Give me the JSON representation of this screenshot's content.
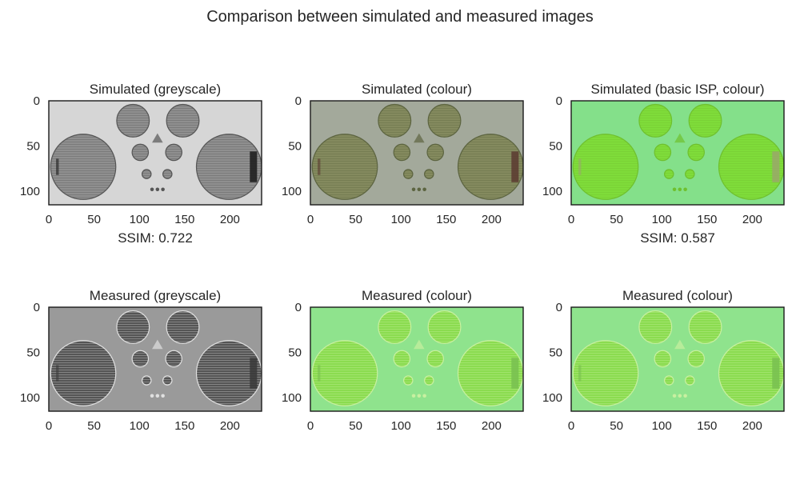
{
  "figure": {
    "title": "Comparison between simulated and measured images"
  },
  "chart_data": [
    {
      "type": "image",
      "title": "Simulated (greyscale)",
      "xlim": [
        0,
        235
      ],
      "ylim": [
        0,
        115
      ],
      "xticks": [
        0,
        50,
        100,
        150,
        200
      ],
      "yticks": [
        0,
        50,
        100
      ],
      "caption": "SSIM: 0.722",
      "palette": {
        "bg": "#d6d6d6",
        "mid": "#bdbdbd",
        "hole": "#8f8f8f",
        "edge": "#555555",
        "dark": "#1a1a1a"
      }
    },
    {
      "type": "image",
      "title": "Simulated (colour)",
      "xlim": [
        0,
        235
      ],
      "ylim": [
        0,
        115
      ],
      "xticks": [
        0,
        50,
        100,
        150,
        200
      ],
      "yticks": [
        0,
        50,
        100
      ],
      "caption": "",
      "palette": {
        "bg": "#a3a99b",
        "mid": "#9aa08f",
        "hole": "#848a5e",
        "edge": "#5c6440",
        "dark": "#5a3a30"
      }
    },
    {
      "type": "image",
      "title": "Simulated (basic ISP, colour)",
      "xlim": [
        0,
        235
      ],
      "ylim": [
        0,
        115
      ],
      "xticks": [
        0,
        50,
        100,
        150,
        200
      ],
      "yticks": [
        0,
        50,
        100
      ],
      "caption": "SSIM: 0.587",
      "palette": {
        "bg": "#84e08a",
        "mid": "#8fe592",
        "hole": "#7fdc3a",
        "edge": "#6fc02e",
        "dark": "#9aa86a"
      }
    },
    {
      "type": "image",
      "title": "Measured (greyscale)",
      "xlim": [
        0,
        235
      ],
      "ylim": [
        0,
        115
      ],
      "xticks": [
        0,
        50,
        100,
        150,
        200
      ],
      "yticks": [
        0,
        50,
        100
      ],
      "caption": "",
      "palette": {
        "bg": "#9a9a9a",
        "mid": "#8a8a8a",
        "hole": "#555555",
        "edge": "#e0e0e0",
        "dark": "#3a3a3a"
      }
    },
    {
      "type": "image",
      "title": "Measured (colour)",
      "xlim": [
        0,
        235
      ],
      "ylim": [
        0,
        115
      ],
      "xticks": [
        0,
        50,
        100,
        150,
        200
      ],
      "yticks": [
        0,
        50,
        100
      ],
      "caption": "",
      "palette": {
        "bg": "#8fe38d",
        "mid": "#86dc80",
        "hole": "#8bdc50",
        "edge": "#c8f0a0",
        "dark": "#78c050"
      }
    },
    {
      "type": "image",
      "title": "Measured (colour)",
      "xlim": [
        0,
        235
      ],
      "ylim": [
        0,
        115
      ],
      "xticks": [
        0,
        50,
        100,
        150,
        200
      ],
      "yticks": [
        0,
        50,
        100
      ],
      "caption": "",
      "palette": {
        "bg": "#8fe38d",
        "mid": "#86dc80",
        "hole": "#8bdc50",
        "edge": "#c8f0a0",
        "dark": "#78c050"
      }
    }
  ]
}
